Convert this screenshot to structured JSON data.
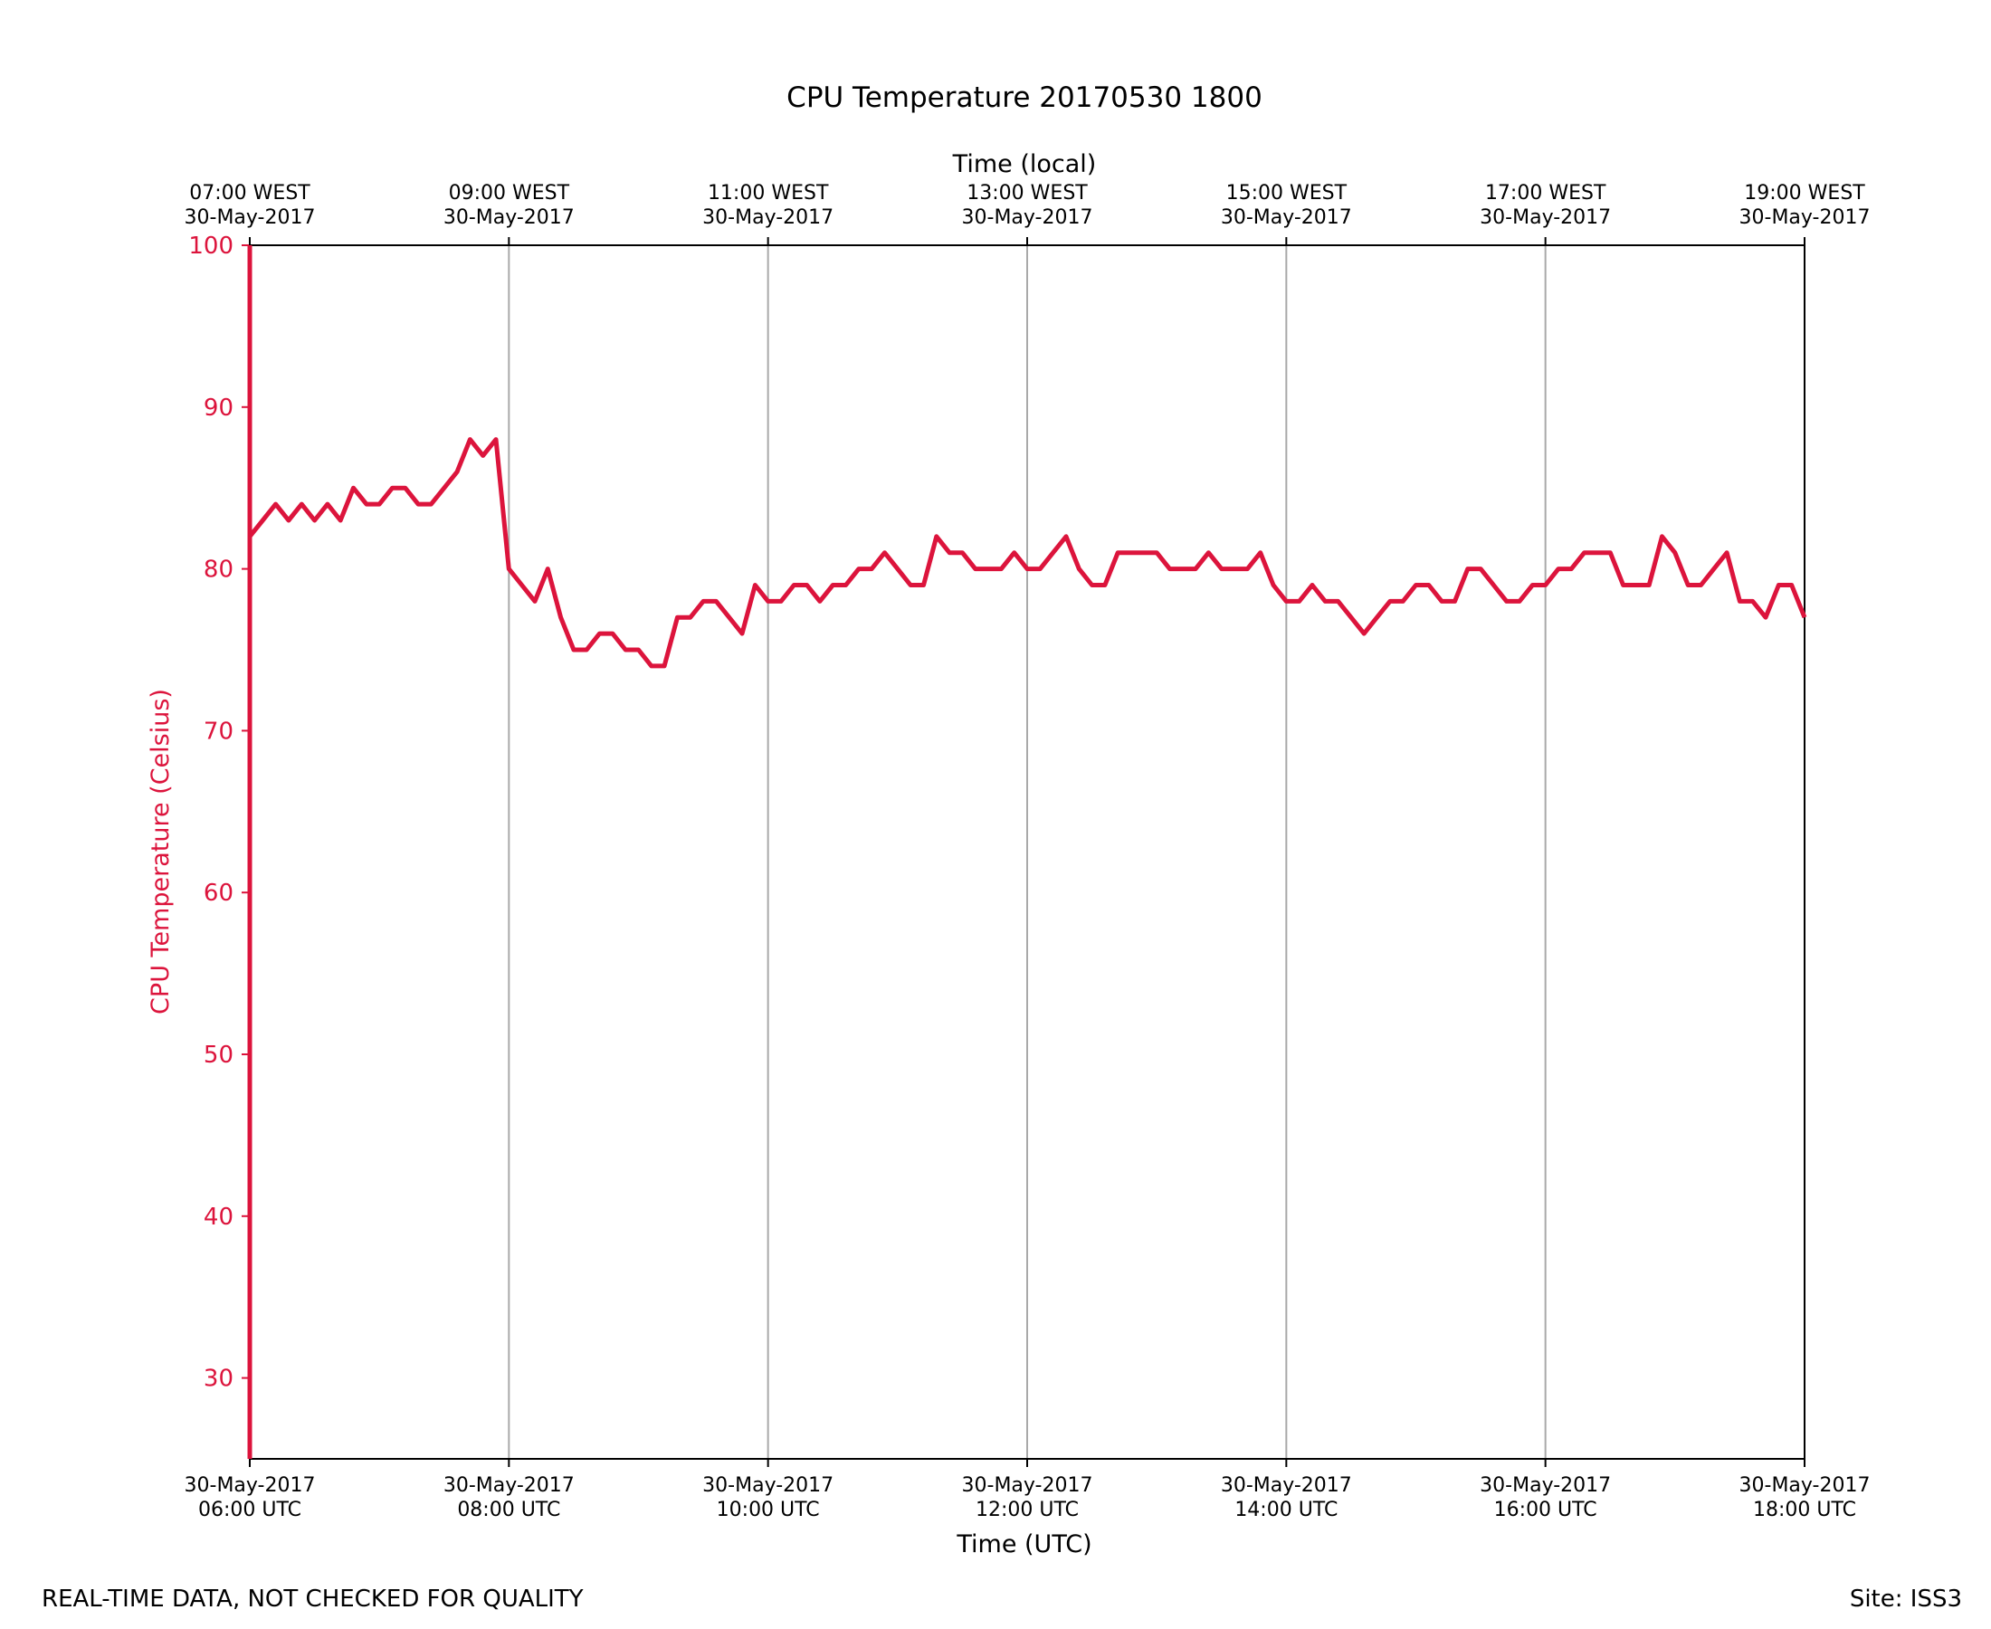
{
  "chart_data": {
    "type": "line",
    "title": "CPU Temperature 20170530 1800",
    "xlabel": "Time (UTC)",
    "top_xlabel": "Time (local)",
    "ylabel": "CPU Temperature (Celsius)",
    "x_hours_range": [
      6,
      18
    ],
    "ylim": [
      25,
      100
    ],
    "y_ticks": [
      30,
      40,
      50,
      60,
      70,
      80,
      90,
      100
    ],
    "x_ticks": [
      {
        "hour": 6,
        "date": "30-May-2017",
        "utc": "06:00 UTC",
        "local": "07:00 WEST",
        "local_date": "30-May-2017"
      },
      {
        "hour": 8,
        "date": "30-May-2017",
        "utc": "08:00 UTC",
        "local": "09:00 WEST",
        "local_date": "30-May-2017"
      },
      {
        "hour": 10,
        "date": "30-May-2017",
        "utc": "10:00 UTC",
        "local": "11:00 WEST",
        "local_date": "30-May-2017"
      },
      {
        "hour": 12,
        "date": "30-May-2017",
        "utc": "12:00 UTC",
        "local": "13:00 WEST",
        "local_date": "30-May-2017"
      },
      {
        "hour": 14,
        "date": "30-May-2017",
        "utc": "14:00 UTC",
        "local": "15:00 WEST",
        "local_date": "30-May-2017"
      },
      {
        "hour": 16,
        "date": "30-May-2017",
        "utc": "16:00 UTC",
        "local": "17:00 WEST",
        "local_date": "30-May-2017"
      },
      {
        "hour": 18,
        "date": "30-May-2017",
        "utc": "18:00 UTC",
        "local": "19:00 WEST",
        "local_date": "30-May-2017"
      }
    ],
    "grid": "vertical at major x ticks",
    "series": [
      {
        "name": "CPU Temperature",
        "color": "#dc143c",
        "x_hours": [
          6.0,
          6.1,
          6.2,
          6.3,
          6.4,
          6.5,
          6.6,
          6.7,
          6.8,
          6.9,
          7.0,
          7.1,
          7.2,
          7.3,
          7.4,
          7.5,
          7.6,
          7.7,
          7.8,
          7.9,
          8.0,
          8.1,
          8.2,
          8.3,
          8.4,
          8.5,
          8.6,
          8.7,
          8.8,
          8.9,
          9.0,
          9.1,
          9.2,
          9.3,
          9.4,
          9.5,
          9.6,
          9.7,
          9.8,
          9.9,
          10.0,
          10.1,
          10.2,
          10.3,
          10.4,
          10.5,
          10.6,
          10.7,
          10.8,
          10.9,
          11.0,
          11.1,
          11.2,
          11.3,
          11.4,
          11.5,
          11.6,
          11.7,
          11.8,
          11.9,
          12.0,
          12.1,
          12.2,
          12.3,
          12.4,
          12.5,
          12.6,
          12.7,
          12.8,
          12.9,
          13.0,
          13.1,
          13.2,
          13.3,
          13.4,
          13.5,
          13.6,
          13.7,
          13.8,
          13.9,
          14.0,
          14.1,
          14.2,
          14.3,
          14.4,
          14.5,
          14.6,
          14.7,
          14.8,
          14.9,
          15.0,
          15.1,
          15.2,
          15.3,
          15.4,
          15.5,
          15.6,
          15.7,
          15.8,
          15.9,
          16.0,
          16.1,
          16.2,
          16.3,
          16.4,
          16.5,
          16.6,
          16.7,
          16.8,
          16.9,
          17.0,
          17.1,
          17.2,
          17.3,
          17.4,
          17.5,
          17.6,
          17.7,
          17.8,
          17.9,
          18.0
        ],
        "values": [
          82,
          83,
          84,
          83,
          84,
          83,
          84,
          83,
          85,
          84,
          84,
          85,
          85,
          84,
          84,
          85,
          86,
          88,
          87,
          88,
          80,
          79,
          78,
          80,
          77,
          75,
          75,
          76,
          76,
          75,
          75,
          74,
          74,
          77,
          77,
          78,
          78,
          77,
          76,
          79,
          78,
          78,
          79,
          79,
          78,
          79,
          79,
          80,
          80,
          81,
          80,
          79,
          79,
          82,
          81,
          81,
          80,
          80,
          80,
          81,
          80,
          80,
          81,
          82,
          80,
          79,
          79,
          81,
          81,
          81,
          81,
          80,
          80,
          80,
          81,
          80,
          80,
          80,
          81,
          79,
          78,
          78,
          79,
          78,
          78,
          77,
          76,
          77,
          78,
          78,
          79,
          79,
          78,
          78,
          80,
          80,
          79,
          78,
          78,
          79,
          79,
          80,
          80,
          81,
          81,
          81,
          79,
          79,
          79,
          82,
          81,
          79,
          79,
          80,
          81,
          78,
          78,
          77,
          79,
          79,
          77
        ]
      }
    ]
  },
  "footer": {
    "left_note": "REAL-TIME DATA, NOT CHECKED FOR QUALITY",
    "site": "Site: ISS3"
  }
}
